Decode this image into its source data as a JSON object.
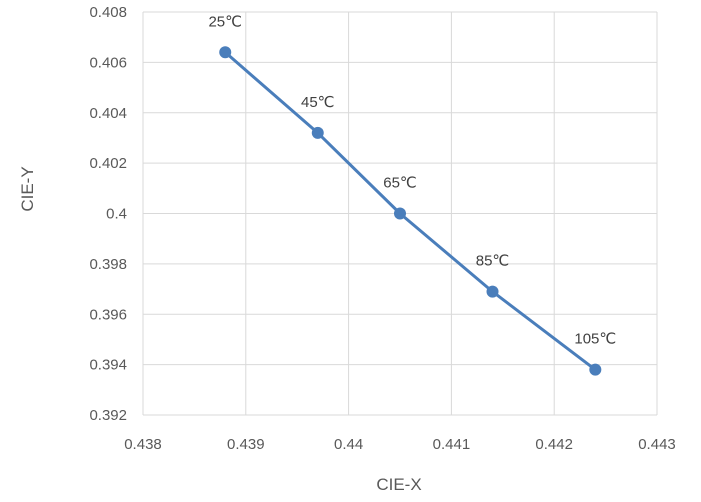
{
  "chart_data": {
    "type": "scatter",
    "xlabel": "CIE-X",
    "ylabel": "CIE-Y",
    "xlim": [
      0.438,
      0.443
    ],
    "ylim": [
      0.392,
      0.408
    ],
    "xticks": [
      "0.438",
      "0.439",
      "0.44",
      "0.441",
      "0.442",
      "0.443"
    ],
    "yticks": [
      "0.392",
      "0.394",
      "0.396",
      "0.398",
      "0.4",
      "0.402",
      "0.404",
      "0.406",
      "0.408"
    ],
    "grid": true,
    "series_color": "#4a7ebb",
    "points": [
      {
        "label": "25℃",
        "x": 0.4388,
        "y": 0.4064
      },
      {
        "label": "45℃",
        "x": 0.4397,
        "y": 0.4032
      },
      {
        "label": "65℃",
        "x": 0.4405,
        "y": 0.4
      },
      {
        "label": "85℃",
        "x": 0.4414,
        "y": 0.3969
      },
      {
        "label": "105℃",
        "x": 0.4424,
        "y": 0.3938
      }
    ]
  }
}
